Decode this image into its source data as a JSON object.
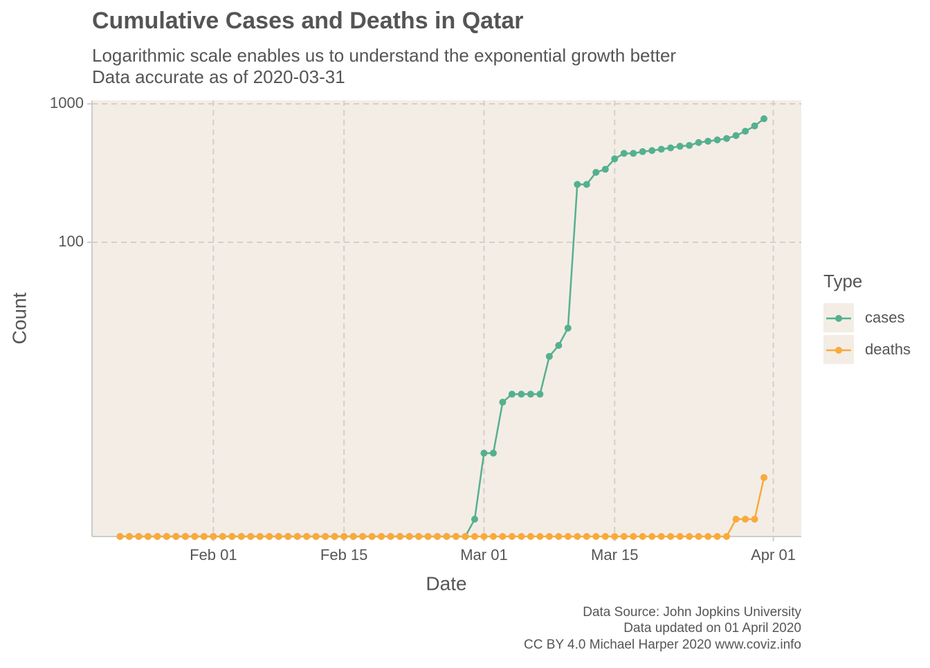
{
  "chart_data": {
    "type": "line",
    "title": "Cumulative Cases and Deaths in Qatar",
    "subtitle": [
      "Logarithmic scale enables us to understand the exponential growth better",
      "Data accurate as of 2020-03-31"
    ],
    "x_label": "Date",
    "y_label": "Count",
    "caption": [
      "Data Source: John Jopkins University",
      "Data updated on 01 April 2020",
      "CC BY 4.0 Michael Harper 2020 www.coviz.info"
    ],
    "legend_title": "Type",
    "legend_position": "right",
    "log_y": true,
    "grid": true,
    "xlim": [
      "Jan 19",
      "Apr 04"
    ],
    "xticks": [
      "Feb 01",
      "Feb 15",
      "Mar 01",
      "Mar 15",
      "Apr 01"
    ],
    "ylim": [
      0.75,
      1060
    ],
    "yticks": [
      100,
      1000
    ],
    "x": [
      "Jan 22",
      "Jan 23",
      "Jan 24",
      "Jan 25",
      "Jan 26",
      "Jan 27",
      "Jan 28",
      "Jan 29",
      "Jan 30",
      "Jan 31",
      "Feb 01",
      "Feb 02",
      "Feb 03",
      "Feb 04",
      "Feb 05",
      "Feb 06",
      "Feb 07",
      "Feb 08",
      "Feb 09",
      "Feb 10",
      "Feb 11",
      "Feb 12",
      "Feb 13",
      "Feb 14",
      "Feb 15",
      "Feb 16",
      "Feb 17",
      "Feb 18",
      "Feb 19",
      "Feb 20",
      "Feb 21",
      "Feb 22",
      "Feb 23",
      "Feb 24",
      "Feb 25",
      "Feb 26",
      "Feb 27",
      "Feb 28",
      "Feb 29",
      "Mar 01",
      "Mar 02",
      "Mar 03",
      "Mar 04",
      "Mar 05",
      "Mar 06",
      "Mar 07",
      "Mar 08",
      "Mar 09",
      "Mar 10",
      "Mar 11",
      "Mar 12",
      "Mar 13",
      "Mar 14",
      "Mar 15",
      "Mar 16",
      "Mar 17",
      "Mar 18",
      "Mar 19",
      "Mar 20",
      "Mar 21",
      "Mar 22",
      "Mar 23",
      "Mar 24",
      "Mar 25",
      "Mar 26",
      "Mar 27",
      "Mar 28",
      "Mar 29",
      "Mar 30",
      "Mar 31"
    ],
    "series": [
      {
        "name": "cases",
        "color": "#55b08f",
        "values": [
          0,
          0,
          0,
          0,
          0,
          0,
          0,
          0,
          0,
          0,
          0,
          0,
          0,
          0,
          0,
          0,
          0,
          0,
          0,
          0,
          0,
          0,
          0,
          0,
          0,
          0,
          0,
          0,
          0,
          0,
          0,
          0,
          0,
          0,
          0,
          0,
          0,
          0,
          1,
          3,
          3,
          7,
          8,
          8,
          8,
          8,
          15,
          18,
          24,
          262,
          262,
          320,
          337,
          401,
          439,
          439,
          452,
          460,
          470,
          481,
          494,
          501,
          526,
          537,
          549,
          562,
          590,
          634,
          693,
          781
        ]
      },
      {
        "name": "deaths",
        "color": "#f9aa3c",
        "values": [
          0,
          0,
          0,
          0,
          0,
          0,
          0,
          0,
          0,
          0,
          0,
          0,
          0,
          0,
          0,
          0,
          0,
          0,
          0,
          0,
          0,
          0,
          0,
          0,
          0,
          0,
          0,
          0,
          0,
          0,
          0,
          0,
          0,
          0,
          0,
          0,
          0,
          0,
          0,
          0,
          0,
          0,
          0,
          0,
          0,
          0,
          0,
          0,
          0,
          0,
          0,
          0,
          0,
          0,
          0,
          0,
          0,
          0,
          0,
          0,
          0,
          0,
          0,
          0,
          0,
          0,
          1,
          1,
          1,
          2
        ]
      }
    ]
  }
}
